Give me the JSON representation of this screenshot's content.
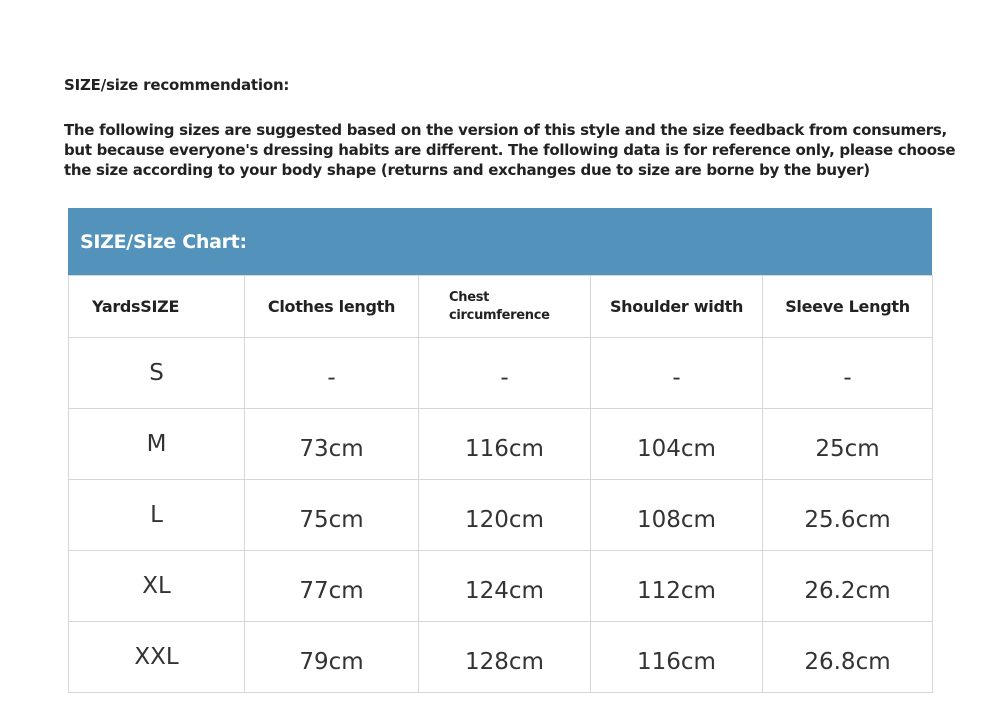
{
  "title": "SIZE/size recommendation:",
  "intro": "The following sizes are suggested based on the version of this style and the size feedback from consumers, but because everyone's dressing habits are different. The following data is for reference only, please choose the size according to your body shape (returns and exchanges due to size are borne by the buyer)",
  "chart": {
    "heading": "SIZE/Size Chart:",
    "header_color": "#5393bb",
    "columns": [
      "YardsSIZE",
      "Clothes length",
      "Chest circumference",
      "Shoulder width",
      "Sleeve Length"
    ],
    "rows": [
      [
        "S",
        "-",
        "-",
        "-",
        "-"
      ],
      [
        "M",
        "73cm",
        "116cm",
        "104cm",
        "25cm"
      ],
      [
        "L",
        "75cm",
        "120cm",
        "108cm",
        "25.6cm"
      ],
      [
        "XL",
        "77cm",
        "124cm",
        "112cm",
        "26.2cm"
      ],
      [
        "XXL",
        "79cm",
        "128cm",
        "116cm",
        "26.8cm"
      ]
    ]
  }
}
